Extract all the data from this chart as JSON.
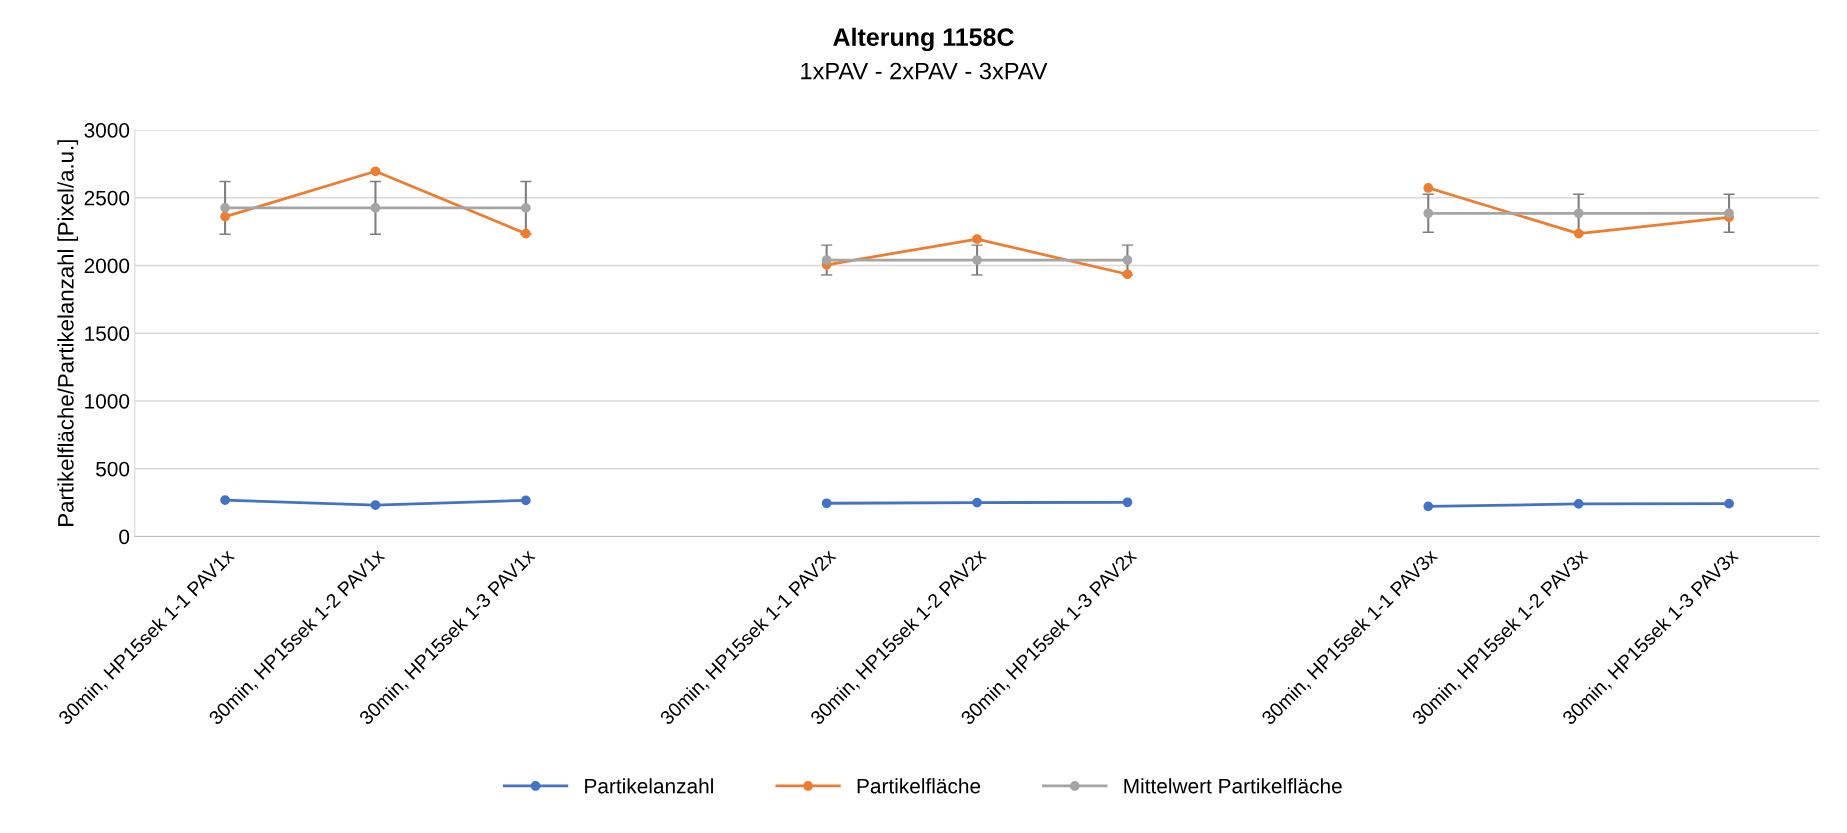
{
  "chart_data": {
    "type": "line",
    "title": "Alterung 1158C",
    "subtitle": "1xPAV - 2xPAV - 3xPAV",
    "ylabel": "Partikelfläche/Partikelanzahl [Pixel/a.u.]",
    "categories": [
      "30min, HP15sek 1-1 PAV1x",
      "30min, HP15sek 1-2 PAV1x",
      "30min, HP15sek 1-3 PAV1x",
      null,
      "30min, HP15sek 1-1 PAV2x",
      "30min, HP15sek 1-2 PAV2x",
      "30min, HP15sek 1-3 PAV2x",
      null,
      "30min, HP15sek 1-1 PAV3x",
      "30min, HP15sek 1-2 PAV3x",
      "30min, HP15sek 1-3 PAV3x"
    ],
    "series": [
      {
        "name": "Partikelanzahl",
        "color": "#4472c4",
        "values": [
          268,
          232,
          266,
          null,
          245,
          250,
          252,
          null,
          222,
          240,
          242
        ]
      },
      {
        "name": "Partikelfläche",
        "color": "#ed7d31",
        "values": [
          2360,
          2695,
          2235,
          null,
          2005,
          2195,
          1935,
          null,
          2572,
          2235,
          2355
        ]
      },
      {
        "name": "Mittelwert Partikelfläche",
        "color": "#a5a5a5",
        "values": [
          2425,
          2425,
          2425,
          null,
          2040,
          2040,
          2040,
          null,
          2385,
          2385,
          2385
        ],
        "errors": [
          195,
          195,
          195,
          null,
          110,
          110,
          110,
          null,
          140,
          140,
          140
        ]
      }
    ],
    "ylim": [
      0,
      3000
    ],
    "yticks": [
      0,
      500,
      1000,
      1500,
      2000,
      2500,
      3000
    ],
    "grid": "y",
    "legend": "bottom",
    "marker": "circle",
    "line_style": "solid"
  }
}
